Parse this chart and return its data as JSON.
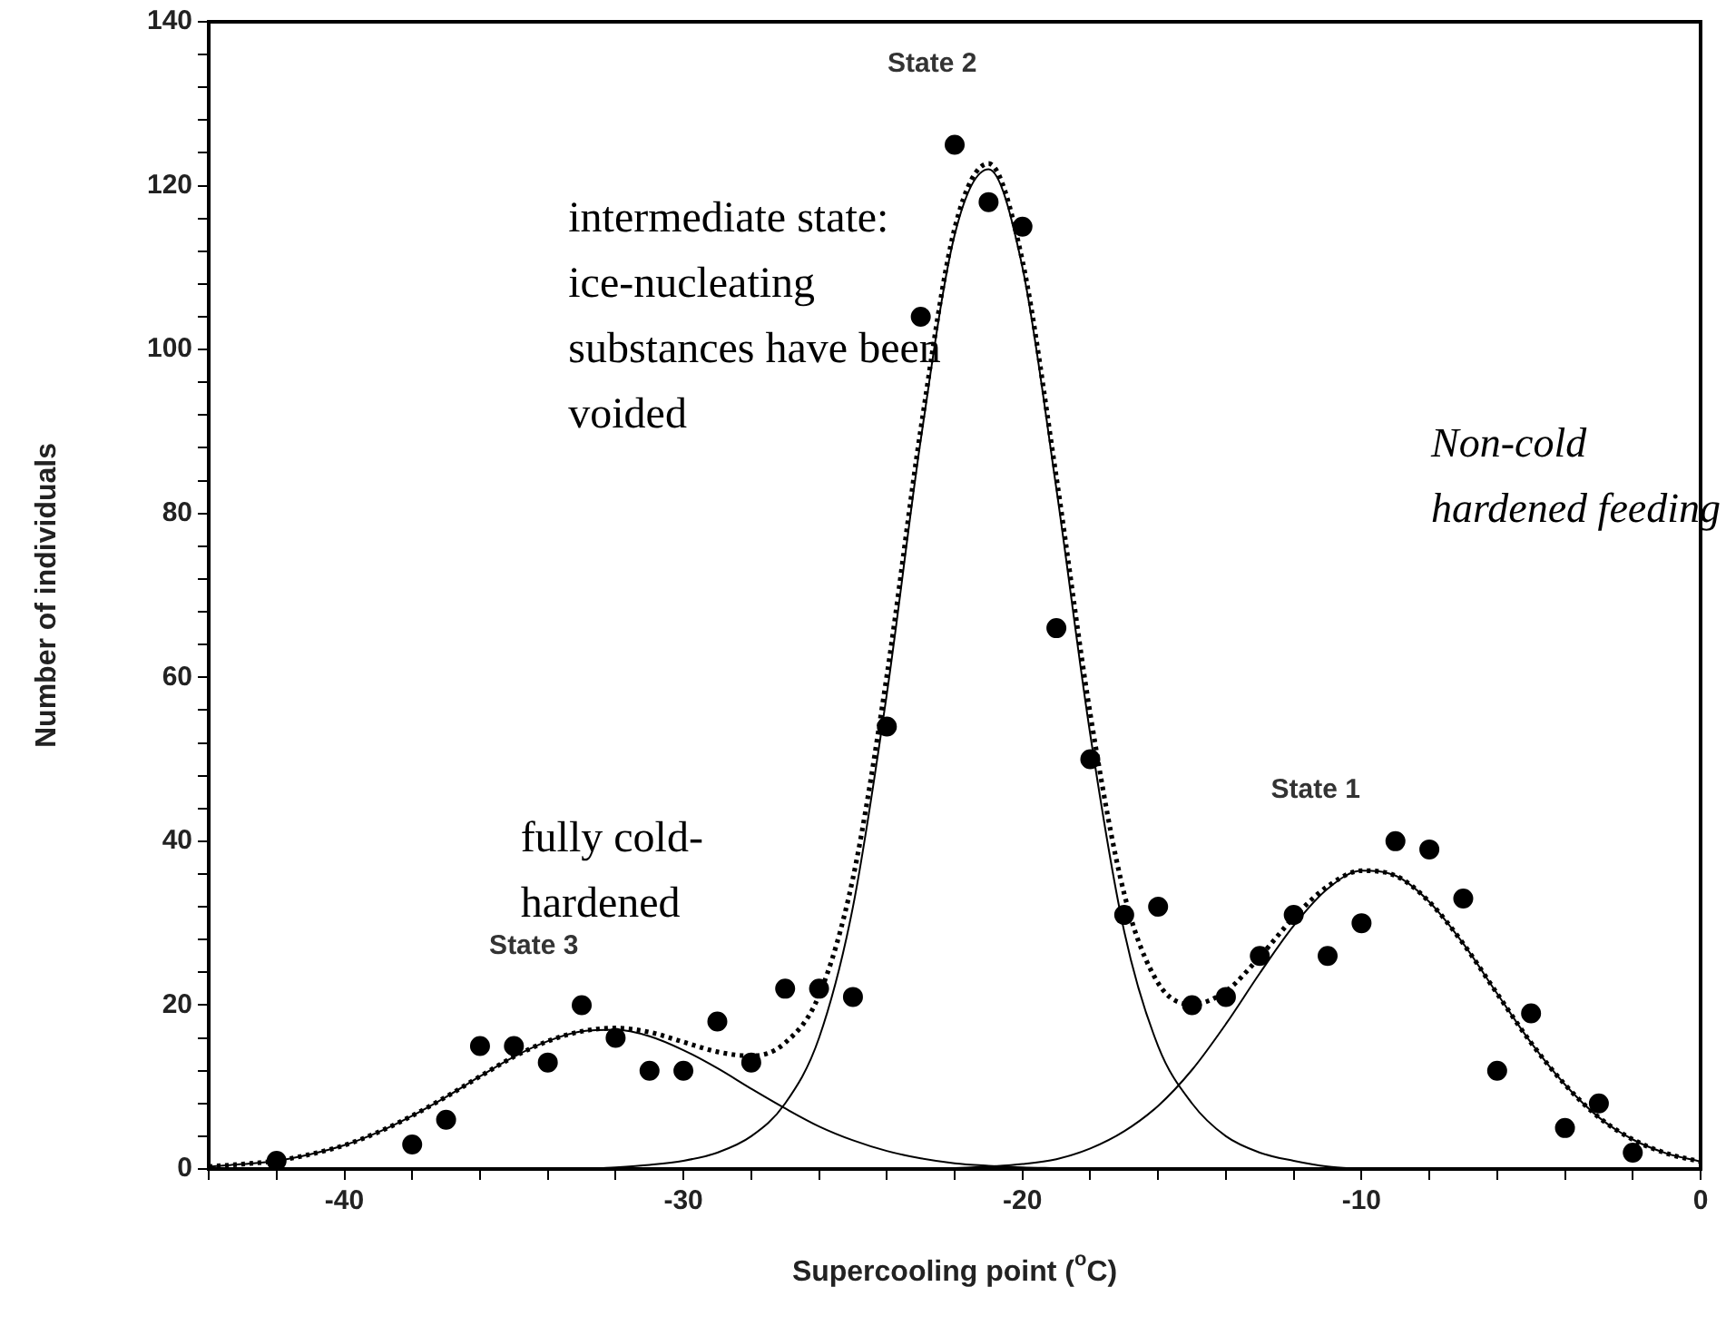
{
  "chart_data": {
    "type": "scatter",
    "xlabel": "Supercooling point ($^{o}$C)",
    "ylabel": "Number of individuals",
    "xlim": [
      -44,
      0
    ],
    "xticks": [
      {
        "value": -44,
        "label": null
      },
      {
        "value": -42,
        "label": null
      },
      -40,
      {
        "value": -38,
        "label": null
      },
      {
        "value": -36,
        "label": null
      },
      {
        "value": -34,
        "label": null
      },
      {
        "value": -32,
        "label": null
      },
      -30,
      {
        "value": -28,
        "label": null
      },
      {
        "value": -26,
        "label": null
      },
      {
        "value": -24,
        "label": null
      },
      {
        "value": -22,
        "label": null
      },
      -20,
      {
        "value": -18,
        "label": null
      },
      {
        "value": -16,
        "label": null
      },
      {
        "value": -14,
        "label": null
      },
      {
        "value": -12,
        "label": null
      },
      -10,
      {
        "value": -8,
        "label": null
      },
      {
        "value": -6,
        "label": null
      },
      {
        "value": -4,
        "label": null
      },
      {
        "value": -2,
        "label": null
      },
      0
    ],
    "ylim": [
      0,
      140
    ],
    "yticks": [
      0,
      {
        "value": 4,
        "label": null
      },
      {
        "value": 8,
        "label": null
      },
      {
        "value": 12,
        "label": null
      },
      {
        "value": 16,
        "label": null
      },
      20,
      {
        "value": 24,
        "label": null
      },
      {
        "value": 28,
        "label": null
      },
      {
        "value": 32,
        "label": null
      },
      {
        "value": 36,
        "label": null
      },
      40,
      {
        "value": 44,
        "label": null
      },
      {
        "value": 48,
        "label": null
      },
      {
        "value": 52,
        "label": null
      },
      {
        "value": 56,
        "label": null
      },
      60,
      {
        "value": 64,
        "label": null
      },
      {
        "value": 68,
        "label": null
      },
      {
        "value": 72,
        "label": null
      },
      {
        "value": 76,
        "label": null
      },
      80,
      {
        "value": 84,
        "label": null
      },
      {
        "value": 88,
        "label": null
      },
      {
        "value": 92,
        "label": null
      },
      {
        "value": 96,
        "label": null
      },
      100,
      {
        "value": 104,
        "label": null
      },
      {
        "value": 108,
        "label": null
      },
      {
        "value": 112,
        "label": null
      },
      {
        "value": 116,
        "label": null
      },
      120,
      {
        "value": 124,
        "label": null
      },
      {
        "value": 128,
        "label": null
      },
      {
        "value": 132,
        "label": null
      },
      {
        "value": 136,
        "label": null
      },
      140
    ],
    "grid": false,
    "legend": false,
    "series": [
      {
        "type": "scatter",
        "color": "#000000",
        "marker": "circle",
        "x": [
          -42,
          -38,
          -37,
          -36,
          -35,
          -34,
          -33,
          -32,
          -31,
          -30,
          -29,
          -28,
          -27,
          -26,
          -25,
          -24,
          -23,
          -22,
          -21,
          -20,
          -19,
          -18,
          -17,
          -16,
          -15,
          -14,
          -13,
          -12,
          -11,
          -10,
          -9,
          -8,
          -7,
          -6,
          -5,
          -4,
          -3,
          -2
        ],
        "values": [
          1,
          3,
          6,
          15,
          15,
          13,
          20,
          16,
          12,
          12,
          18,
          13,
          22,
          22,
          21,
          54,
          104,
          125,
          118,
          115,
          66,
          50,
          31,
          32,
          20,
          21,
          26,
          31,
          26,
          30,
          40,
          39,
          33,
          12,
          19,
          5,
          8,
          2
        ]
      },
      {
        "type": "line",
        "color": "#000000",
        "marker": "none",
        "line_style": "solid",
        "x": [
          -44,
          -43,
          -42,
          -41,
          -40,
          -39,
          -38,
          -37,
          -36,
          -35,
          -34,
          -33,
          -32,
          -31,
          -30,
          -29,
          -28,
          -27,
          -26,
          -25,
          -24,
          -23,
          -22,
          -21,
          -20,
          -19,
          -18
        ],
        "values": [
          0.3,
          0.6,
          1,
          1.8,
          2.9,
          4.5,
          6.5,
          8.8,
          11.3,
          13.7,
          15.6,
          16.8,
          17,
          16.2,
          14.5,
          12.3,
          9.8,
          7.4,
          5.2,
          3.5,
          2.2,
          1.3,
          0.7,
          0.4,
          0.2,
          0.1,
          0
        ]
      },
      {
        "type": "line",
        "color": "#000000",
        "marker": "none",
        "line_style": "solid",
        "x": [
          -33,
          -32,
          -31,
          -30,
          -29,
          -28,
          -27,
          -26,
          -25,
          -24,
          -23,
          -22,
          -21,
          -20,
          -19,
          -18,
          -17,
          -16,
          -15,
          -14,
          -13,
          -12,
          -11,
          -10
        ],
        "values": [
          0,
          0.2,
          0.5,
          1,
          2,
          4,
          8,
          16,
          32,
          58,
          89,
          114,
          122,
          110,
          83,
          53,
          29,
          15,
          8,
          4,
          2,
          1,
          0.3,
          0
        ]
      },
      {
        "type": "line",
        "color": "#000000",
        "marker": "none",
        "line_style": "solid",
        "x": [
          -23,
          -22,
          -21,
          -20,
          -19,
          -18,
          -17,
          -16,
          -15,
          -14,
          -13,
          -12,
          -11,
          -10,
          -9,
          -8,
          -7,
          -6,
          -5,
          -4,
          -3,
          -2,
          -1,
          0
        ],
        "values": [
          0,
          0.1,
          0.3,
          0.6,
          1.2,
          2.5,
          4.6,
          7.7,
          12.1,
          17.7,
          23.9,
          29.7,
          34.2,
          36.4,
          35.8,
          32.6,
          27.5,
          21.4,
          15.4,
          10.3,
          6.3,
          3.6,
          1.9,
          0.9
        ]
      },
      {
        "type": "line",
        "color": "#000000",
        "marker": "none",
        "line_style": "dotted",
        "x": [
          -44,
          -43,
          -42,
          -41,
          -40,
          -39,
          -38,
          -37,
          -36,
          -35,
          -34,
          -33,
          -32,
          -31,
          -30,
          -29,
          -28,
          -27,
          -26,
          -25,
          -24,
          -23,
          -22,
          -21,
          -20,
          -19,
          -18,
          -17,
          -16,
          -15,
          -14,
          -13,
          -12,
          -11,
          -10,
          -9,
          -8,
          -7,
          -6,
          -5,
          -4,
          -3,
          -2,
          -1,
          0
        ],
        "values": [
          0.3,
          0.6,
          1,
          1.8,
          2.9,
          4.5,
          6.5,
          8.8,
          11.3,
          13.7,
          15.6,
          16.8,
          17.2,
          16.7,
          15.5,
          14.3,
          13.8,
          15.4,
          21.2,
          35.5,
          60.2,
          90.3,
          114.8,
          122.7,
          110.8,
          84.4,
          55.5,
          33.6,
          22.7,
          20.1,
          21.7,
          25.9,
          30.7,
          34.5,
          36.4,
          35.8,
          32.6,
          27.5,
          21.4,
          15.4,
          10.3,
          6.3,
          3.6,
          1.9,
          0.9
        ]
      }
    ],
    "annotations": [
      "State 2",
      "State 3",
      "State 1",
      "intermediate state:\nice-nucleating\nsubstances have been\nvoided",
      "fully cold-\nhardened",
      "Non-cold\nhardened feeding"
    ]
  }
}
